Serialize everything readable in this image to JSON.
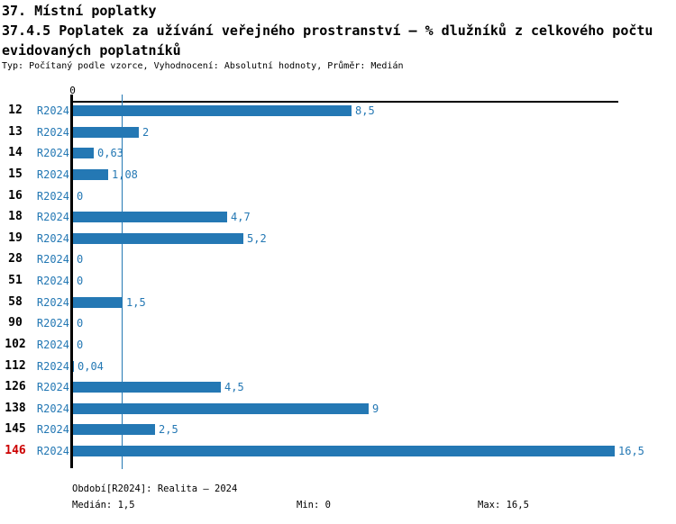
{
  "header": {
    "title": "37. Místní poplatky",
    "subtitle": "37.4.5 Poplatek za užívání veřejného prostranství – % dlužníků z celkového počtu evidovaných poplatníků",
    "meta": "Typ: Počítaný podle vzorce, Vyhodnocení: Absolutní hodnoty, Průměr: Medián"
  },
  "chart_data": {
    "type": "bar",
    "orientation": "horizontal",
    "title": "37.4.5 Poplatek za užívání veřejného prostranství – % dlužníků z celkového počtu evidovaných poplatníků",
    "categories": [
      "12",
      "13",
      "14",
      "15",
      "16",
      "18",
      "19",
      "28",
      "51",
      "58",
      "90",
      "102",
      "112",
      "126",
      "138",
      "145",
      "146"
    ],
    "series_label": "R2024",
    "values": [
      8.5,
      2,
      0.63,
      1.08,
      0,
      4.7,
      5.2,
      0,
      0,
      1.5,
      0,
      0,
      0.04,
      4.5,
      9,
      2.5,
      16.5
    ],
    "value_labels": [
      "8,5",
      "2",
      "0,63",
      "1,08",
      "0",
      "4,7",
      "5,2",
      "0",
      "0",
      "1,5",
      "0",
      "0",
      "0,04",
      "4,5",
      "9",
      "2,5",
      "16,5"
    ],
    "highlighted_category": "146",
    "axis": {
      "zero_label": "0",
      "xlim": [
        0,
        16.65
      ],
      "median_line_value": 1.5,
      "grid": false
    },
    "colors": {
      "bar": "#2478b4",
      "label_blue": "#2478b4",
      "median_line": "#2478b4",
      "highlight_red": "#cc0000",
      "axis_black": "#000000"
    }
  },
  "footer": {
    "period": "Období[R2024]: Realita – 2024",
    "median": "Medián: 1,5",
    "min": "Min: 0",
    "max": "Max: 16,5"
  }
}
